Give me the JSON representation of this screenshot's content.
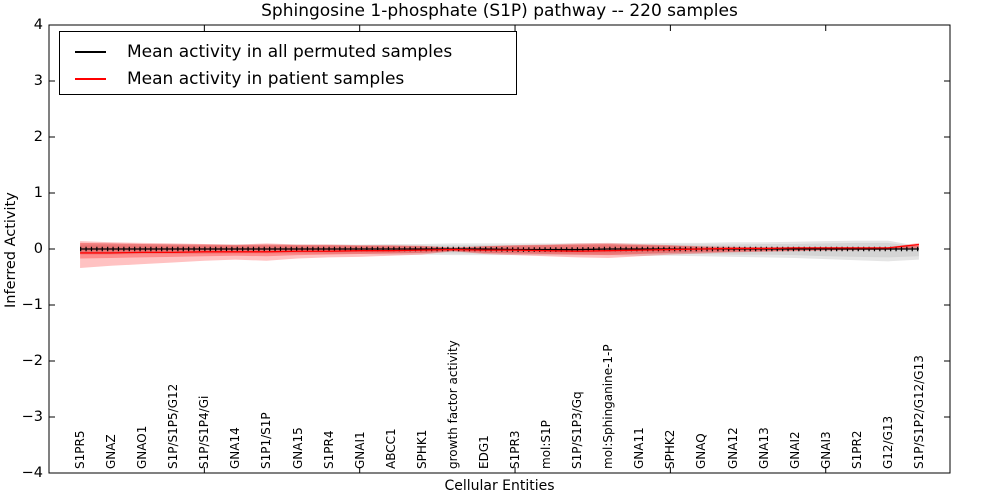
{
  "chart_data": {
    "type": "line",
    "title": "Sphingosine 1-phosphate (S1P) pathway -- 220 samples",
    "xlabel": "Cellular Entities",
    "ylabel": "Inferred Activity",
    "ylim": [
      -4,
      4
    ],
    "xlim": [
      0,
      29
    ],
    "grid": false,
    "legend_position": "upper left",
    "ytick_values": [
      4,
      3,
      2,
      1,
      0,
      -1,
      -2,
      -3,
      -4
    ],
    "ytick_labels": [
      "4",
      "3",
      "2",
      "1",
      "0",
      "−1",
      "−2",
      "−3",
      "−4"
    ],
    "xtick_values": [
      0,
      5,
      10,
      15,
      20,
      25
    ],
    "categories": [
      "S1PR5",
      "GNAZ",
      "GNAO1",
      "S1P/S1P5/G12",
      "S1P/S1P4/Gi",
      "GNA14",
      "S1P1/S1P",
      "GNA15",
      "S1PR4",
      "GNAI1",
      "ABCC1",
      "SPHK1",
      "growth factor activity",
      "EDG1",
      "S1PR3",
      "mol:S1P",
      "S1P/S1P3/Gq",
      "mol:Sphinganine-1-P",
      "GNA11",
      "SPHK2",
      "GNAQ",
      "GNA12",
      "GNA13",
      "GNAI2",
      "GNAI3",
      "S1PR2",
      "G12/G13",
      "S1P/S1P2/G12/G13"
    ],
    "series": [
      {
        "name": "Mean activity in all permuted samples",
        "color": "#000000",
        "markers": true,
        "values": [
          0,
          0,
          0,
          0,
          0,
          0,
          0,
          0,
          0,
          0,
          0,
          0,
          0,
          0,
          -0.01,
          -0.01,
          -0.01,
          0,
          0,
          0,
          0,
          0,
          0,
          0,
          0,
          0,
          0,
          0
        ]
      },
      {
        "name": "Mean activity in patient samples",
        "color": "#ff0000",
        "markers": false,
        "values": [
          -0.07,
          -0.07,
          -0.06,
          -0.06,
          -0.05,
          -0.05,
          -0.05,
          -0.04,
          -0.04,
          -0.03,
          -0.03,
          -0.02,
          -0.01,
          -0.02,
          -0.02,
          -0.03,
          -0.04,
          -0.03,
          -0.02,
          -0.01,
          0.0,
          0.01,
          0.01,
          0.02,
          0.02,
          0.02,
          0.02,
          0.08
        ]
      }
    ],
    "bands": [
      {
        "name": "permuted-samples-spread-outer",
        "color": "rgba(0,0,0,0.10)",
        "upper": [
          0.1,
          0.1,
          0.09,
          0.09,
          0.08,
          0.08,
          0.08,
          0.08,
          0.08,
          0.08,
          0.09,
          0.09,
          0.1,
          0.1,
          0.1,
          0.1,
          0.1,
          0.1,
          0.1,
          0.11,
          0.11,
          0.12,
          0.12,
          0.13,
          0.14,
          0.15,
          0.15,
          0.05
        ],
        "lower": [
          -0.1,
          -0.1,
          -0.09,
          -0.09,
          -0.09,
          -0.08,
          -0.08,
          -0.08,
          -0.09,
          -0.09,
          -0.1,
          -0.1,
          -0.11,
          -0.11,
          -0.11,
          -0.11,
          -0.11,
          -0.11,
          -0.12,
          -0.12,
          -0.13,
          -0.14,
          -0.15,
          -0.16,
          -0.18,
          -0.2,
          -0.22,
          -0.19
        ]
      },
      {
        "name": "permuted-samples-spread-inner",
        "color": "rgba(0,0,0,0.07)",
        "upper": [
          0.07,
          0.07,
          0.06,
          0.06,
          0.06,
          0.06,
          0.06,
          0.06,
          0.06,
          0.06,
          0.06,
          0.06,
          0.07,
          0.07,
          0.07,
          0.07,
          0.07,
          0.07,
          0.07,
          0.08,
          0.08,
          0.08,
          0.09,
          0.09,
          0.1,
          0.11,
          0.11,
          0.04
        ],
        "lower": [
          -0.07,
          -0.07,
          -0.06,
          -0.06,
          -0.06,
          -0.06,
          -0.06,
          -0.06,
          -0.06,
          -0.06,
          -0.07,
          -0.07,
          -0.08,
          -0.08,
          -0.08,
          -0.08,
          -0.08,
          -0.08,
          -0.08,
          -0.09,
          -0.09,
          -0.1,
          -0.1,
          -0.11,
          -0.13,
          -0.14,
          -0.15,
          -0.13
        ]
      },
      {
        "name": "patient-samples-spread-outer",
        "color": "rgba(255,0,0,0.24)",
        "upper": [
          0.14,
          0.12,
          0.11,
          0.1,
          0.09,
          0.08,
          0.1,
          0.08,
          0.08,
          0.07,
          0.07,
          0.06,
          0.02,
          0.05,
          0.07,
          0.08,
          0.1,
          0.11,
          0.09,
          0.07,
          0.05,
          0.04,
          0.03,
          0.03,
          0.03,
          0.02,
          0.03,
          0.11
        ],
        "lower": [
          -0.34,
          -0.3,
          -0.27,
          -0.24,
          -0.21,
          -0.19,
          -0.21,
          -0.17,
          -0.15,
          -0.14,
          -0.12,
          -0.1,
          -0.04,
          -0.09,
          -0.11,
          -0.13,
          -0.15,
          -0.16,
          -0.13,
          -0.1,
          -0.08,
          -0.06,
          -0.05,
          -0.04,
          -0.03,
          -0.02,
          -0.02,
          0.01
        ]
      },
      {
        "name": "patient-samples-spread-inner",
        "color": "rgba(255,0,0,0.28)",
        "upper": [
          0.11,
          0.1,
          0.09,
          0.08,
          0.08,
          0.07,
          0.08,
          0.07,
          0.07,
          0.06,
          0.06,
          0.05,
          0.03,
          0.05,
          0.06,
          0.07,
          0.08,
          0.09,
          0.07,
          0.06,
          0.04,
          0.03,
          0.03,
          0.02,
          0.02,
          0.01,
          0.02,
          0.09
        ],
        "lower": [
          -0.17,
          -0.16,
          -0.15,
          -0.14,
          -0.13,
          -0.12,
          -0.13,
          -0.11,
          -0.1,
          -0.09,
          -0.08,
          -0.07,
          -0.04,
          -0.07,
          -0.08,
          -0.09,
          -0.1,
          -0.11,
          -0.09,
          -0.07,
          -0.06,
          -0.05,
          -0.04,
          -0.03,
          -0.02,
          -0.02,
          -0.01,
          0.03
        ]
      }
    ]
  }
}
